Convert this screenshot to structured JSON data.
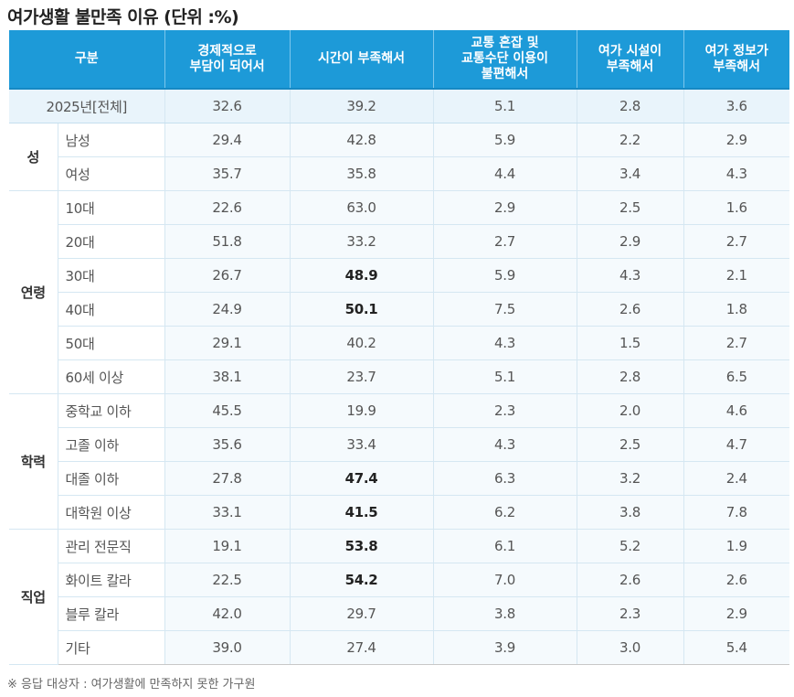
{
  "title": "여가생활 불만족 이유 (단위 :%)",
  "headers": [
    "구분",
    "경제적으로\n부담이 되어서",
    "시간이 부족해서",
    "교통 혼잡 및\n교통수단 이용이\n불편해서",
    "여가 시설이\n부족해서",
    "여가 정보가\n부족해서"
  ],
  "total": {
    "label": "2025년[전체]",
    "values": [
      "32.6",
      "39.2",
      "5.1",
      "2.8",
      "3.6"
    ]
  },
  "groups": [
    {
      "name": "성",
      "rows": [
        {
          "label": "남성",
          "values": [
            "29.4",
            "42.8",
            "5.9",
            "2.2",
            "2.9"
          ],
          "bold": []
        },
        {
          "label": "여성",
          "values": [
            "35.7",
            "35.8",
            "4.4",
            "3.4",
            "4.3"
          ],
          "bold": []
        }
      ]
    },
    {
      "name": "연령",
      "rows": [
        {
          "label": "10대",
          "values": [
            "22.6",
            "63.0",
            "2.9",
            "2.5",
            "1.6"
          ],
          "bold": []
        },
        {
          "label": "20대",
          "values": [
            "51.8",
            "33.2",
            "2.7",
            "2.9",
            "2.7"
          ],
          "bold": []
        },
        {
          "label": "30대",
          "values": [
            "26.7",
            "48.9",
            "5.9",
            "4.3",
            "2.1"
          ],
          "bold": [
            1
          ]
        },
        {
          "label": "40대",
          "values": [
            "24.9",
            "50.1",
            "7.5",
            "2.6",
            "1.8"
          ],
          "bold": [
            1
          ]
        },
        {
          "label": "50대",
          "values": [
            "29.1",
            "40.2",
            "4.3",
            "1.5",
            "2.7"
          ],
          "bold": []
        },
        {
          "label": "60세 이상",
          "values": [
            "38.1",
            "23.7",
            "5.1",
            "2.8",
            "6.5"
          ],
          "bold": []
        }
      ]
    },
    {
      "name": "학력",
      "rows": [
        {
          "label": "중학교 이하",
          "values": [
            "45.5",
            "19.9",
            "2.3",
            "2.0",
            "4.6"
          ],
          "bold": []
        },
        {
          "label": "고졸 이하",
          "values": [
            "35.6",
            "33.4",
            "4.3",
            "2.5",
            "4.7"
          ],
          "bold": []
        },
        {
          "label": "대졸 이하",
          "values": [
            "27.8",
            "47.4",
            "6.3",
            "3.2",
            "2.4"
          ],
          "bold": [
            1
          ]
        },
        {
          "label": "대학원 이상",
          "values": [
            "33.1",
            "41.5",
            "6.2",
            "3.8",
            "7.8"
          ],
          "bold": [
            1
          ]
        }
      ]
    },
    {
      "name": "직업",
      "rows": [
        {
          "label": "관리 전문직",
          "values": [
            "19.1",
            "53.8",
            "6.1",
            "5.2",
            "1.9"
          ],
          "bold": [
            1
          ]
        },
        {
          "label": "화이트 칼라",
          "values": [
            "22.5",
            "54.2",
            "7.0",
            "2.6",
            "2.6"
          ],
          "bold": [
            1
          ]
        },
        {
          "label": "블루 칼라",
          "values": [
            "42.0",
            "29.7",
            "3.8",
            "2.3",
            "2.9"
          ],
          "bold": []
        },
        {
          "label": "기타",
          "values": [
            "39.0",
            "27.4",
            "3.9",
            "3.0",
            "5.4"
          ],
          "bold": []
        }
      ]
    }
  ],
  "note": "※ 응답 대상자 : 여가생활에 만족하지 못한 가구원"
}
